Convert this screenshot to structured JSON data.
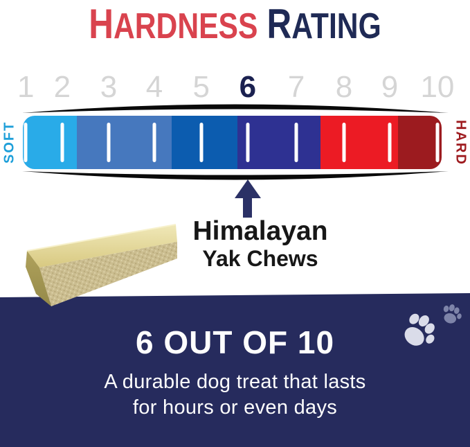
{
  "title": {
    "word1": "HARDNESS",
    "word2": "RATING"
  },
  "colors": {
    "title-red": "#D9434E",
    "title-navy": "#1F2A55",
    "number-gray": "#D5D5D5",
    "number-active": "#1B2150",
    "outline-black": "#0A0A0A",
    "tick-white": "#FFFFFF",
    "soft-blue": "#1E9FD9",
    "hard-red": "#9E1B1F",
    "arrow-navy": "#2B3166",
    "product-black": "#171717",
    "panel-navy": "#262B5D",
    "text-white": "#FDFDFD",
    "paw-light": "#DADCE9",
    "paw-muted": "#7E84A9"
  },
  "scale": {
    "min_label": "SOFT",
    "max_label": "HARD",
    "numbers": [
      {
        "label": "1",
        "active": false
      },
      {
        "label": "2",
        "active": false
      },
      {
        "label": "3",
        "active": false
      },
      {
        "label": "4",
        "active": false
      },
      {
        "label": "5",
        "active": false
      },
      {
        "label": "6",
        "active": true
      },
      {
        "label": "7",
        "active": false
      },
      {
        "label": "8",
        "active": false
      },
      {
        "label": "9",
        "active": false
      },
      {
        "label": "10",
        "active": false
      }
    ],
    "tick_positions_pct": [
      0.7,
      9.4,
      20.5,
      31.4,
      42.6,
      53.7,
      65.3,
      76.7,
      87.6,
      99.0
    ],
    "segments": [
      {
        "color": "#29ABE8",
        "width_pct": 12.9
      },
      {
        "color": "#4678BE",
        "width_pct": 22.6
      },
      {
        "color": "#0C5CAF",
        "width_pct": 15.7
      },
      {
        "color": "#2E3192",
        "width_pct": 19.9
      },
      {
        "color": "#EC1B24",
        "width_pct": 18.5
      },
      {
        "color": "#9C1B1F",
        "width_pct": 10.4
      }
    ],
    "pointer": {
      "value": 6,
      "position_pct": 53.7
    }
  },
  "product": {
    "name_line1": "Himalayan",
    "name_line2": "Yak Chews"
  },
  "result": {
    "headline": "6 OUT OF 10",
    "description_line1": "A durable dog treat that lasts",
    "description_line2": "for hours or even days"
  },
  "chart_data": {
    "type": "linear-gauge",
    "title": "Hardness Rating",
    "scale_min": 1,
    "scale_max": 10,
    "tick_labels": [
      "1",
      "2",
      "3",
      "4",
      "5",
      "6",
      "7",
      "8",
      "9",
      "10"
    ],
    "axis_end_labels": {
      "left": "SOFT",
      "right": "HARD"
    },
    "value": 6,
    "value_label": "6 OUT OF 10",
    "pointed_item": "Himalayan Yak Chews",
    "segments": [
      {
        "color": "#29ABE8",
        "from": 1.0,
        "to": 2.1
      },
      {
        "color": "#4678BE",
        "from": 2.1,
        "to": 4.2
      },
      {
        "color": "#0C5CAF",
        "from": 4.2,
        "to": 5.6
      },
      {
        "color": "#2E3192",
        "from": 5.6,
        "to": 7.5
      },
      {
        "color": "#EC1B24",
        "from": 7.5,
        "to": 9.2
      },
      {
        "color": "#9C1B1F",
        "from": 9.2,
        "to": 10.0
      }
    ],
    "annotation": "A durable dog treat that lasts for hours or even days"
  }
}
